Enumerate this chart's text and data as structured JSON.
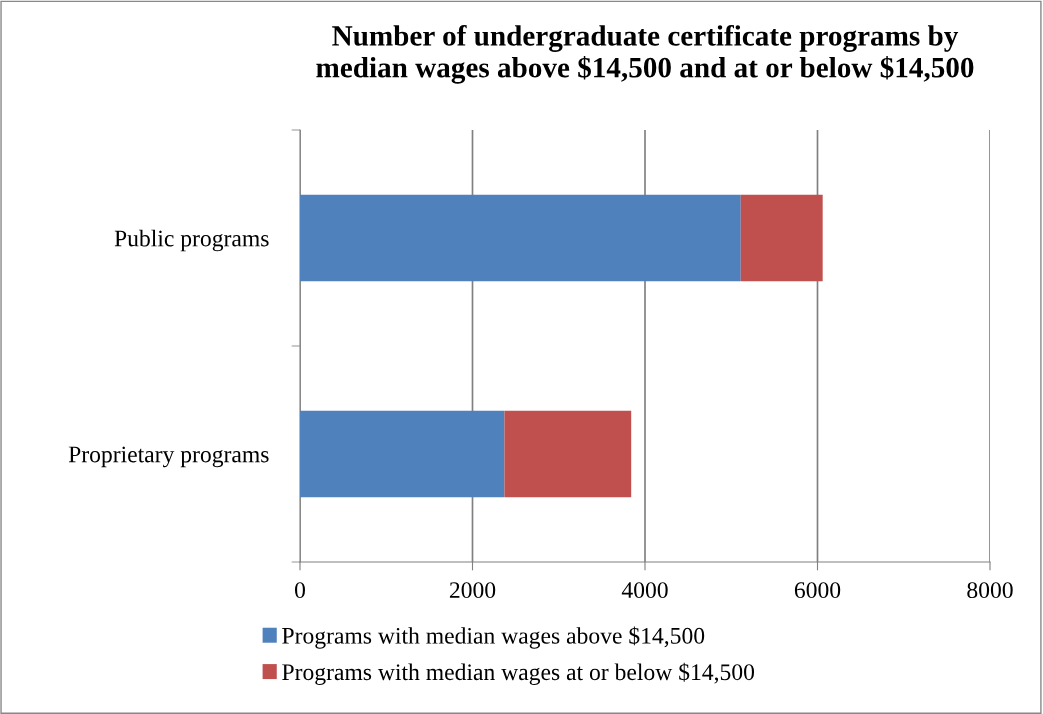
{
  "chart_data": {
    "type": "bar",
    "title": "Number of undergraduate certificate programs by\nmedian wages above $14,500 and at or below $14,500",
    "orientation": "horizontal",
    "stacked": true,
    "categories": [
      "Public programs",
      "Proprietary programs"
    ],
    "series": [
      {
        "name": "Programs with median wages above $14,500",
        "color": "#4f81bd",
        "values": [
          5110,
          2370
        ]
      },
      {
        "name": "Programs with median wages at or below $14,500",
        "color": "#c0504d",
        "values": [
          950,
          1470
        ]
      }
    ],
    "xlim": [
      0,
      8000
    ],
    "xticks": [
      0,
      2000,
      4000,
      6000,
      8000
    ],
    "grid": "x",
    "legend": "bottom"
  }
}
